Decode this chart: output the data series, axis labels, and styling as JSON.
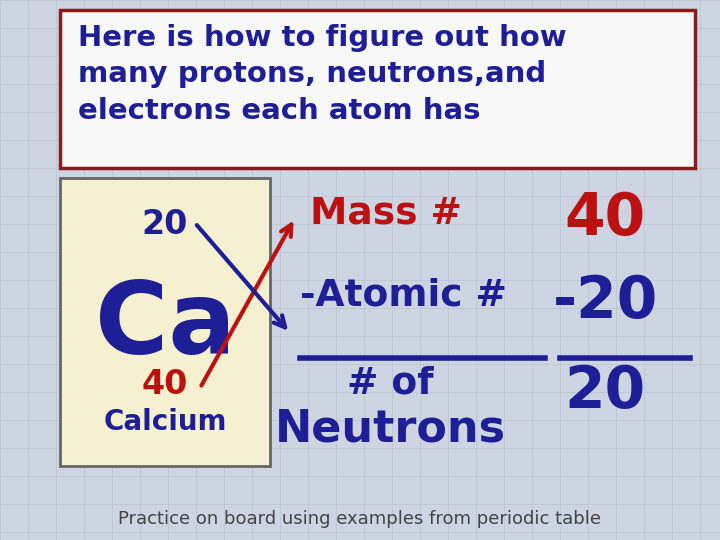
{
  "bg_color": "#cdd5e3",
  "title_box_text": "Here is how to figure out how\nmany protons, neutrons,and\nelectrons each atom has",
  "title_color": "#1e1e96",
  "title_box_border": "#8b1a1a",
  "title_box_bg": "#f8f8f8",
  "element_box_bg": "#f5f0d0",
  "element_box_border": "#666666",
  "element_symbol": "Ca",
  "element_name": "Calcium",
  "element_mass": "40",
  "element_atomic": "20",
  "element_symbol_color": "#1e1e96",
  "element_name_color": "#1e1e96",
  "element_mass_color": "#bb1111",
  "element_atomic_color": "#1e1e96",
  "mass_label": "Mass #",
  "mass_value": "40",
  "atomic_label": "-Atomic #",
  "atomic_value": "-20",
  "neutron_of": "# of",
  "neutron_label": "Neutrons",
  "neutron_value": "20",
  "red_color": "#bb1111",
  "blue_color": "#1e1e96",
  "footer_text": "Practice on board using examples from periodic table",
  "footer_color": "#444444",
  "grid_color": "#b8c4d4"
}
